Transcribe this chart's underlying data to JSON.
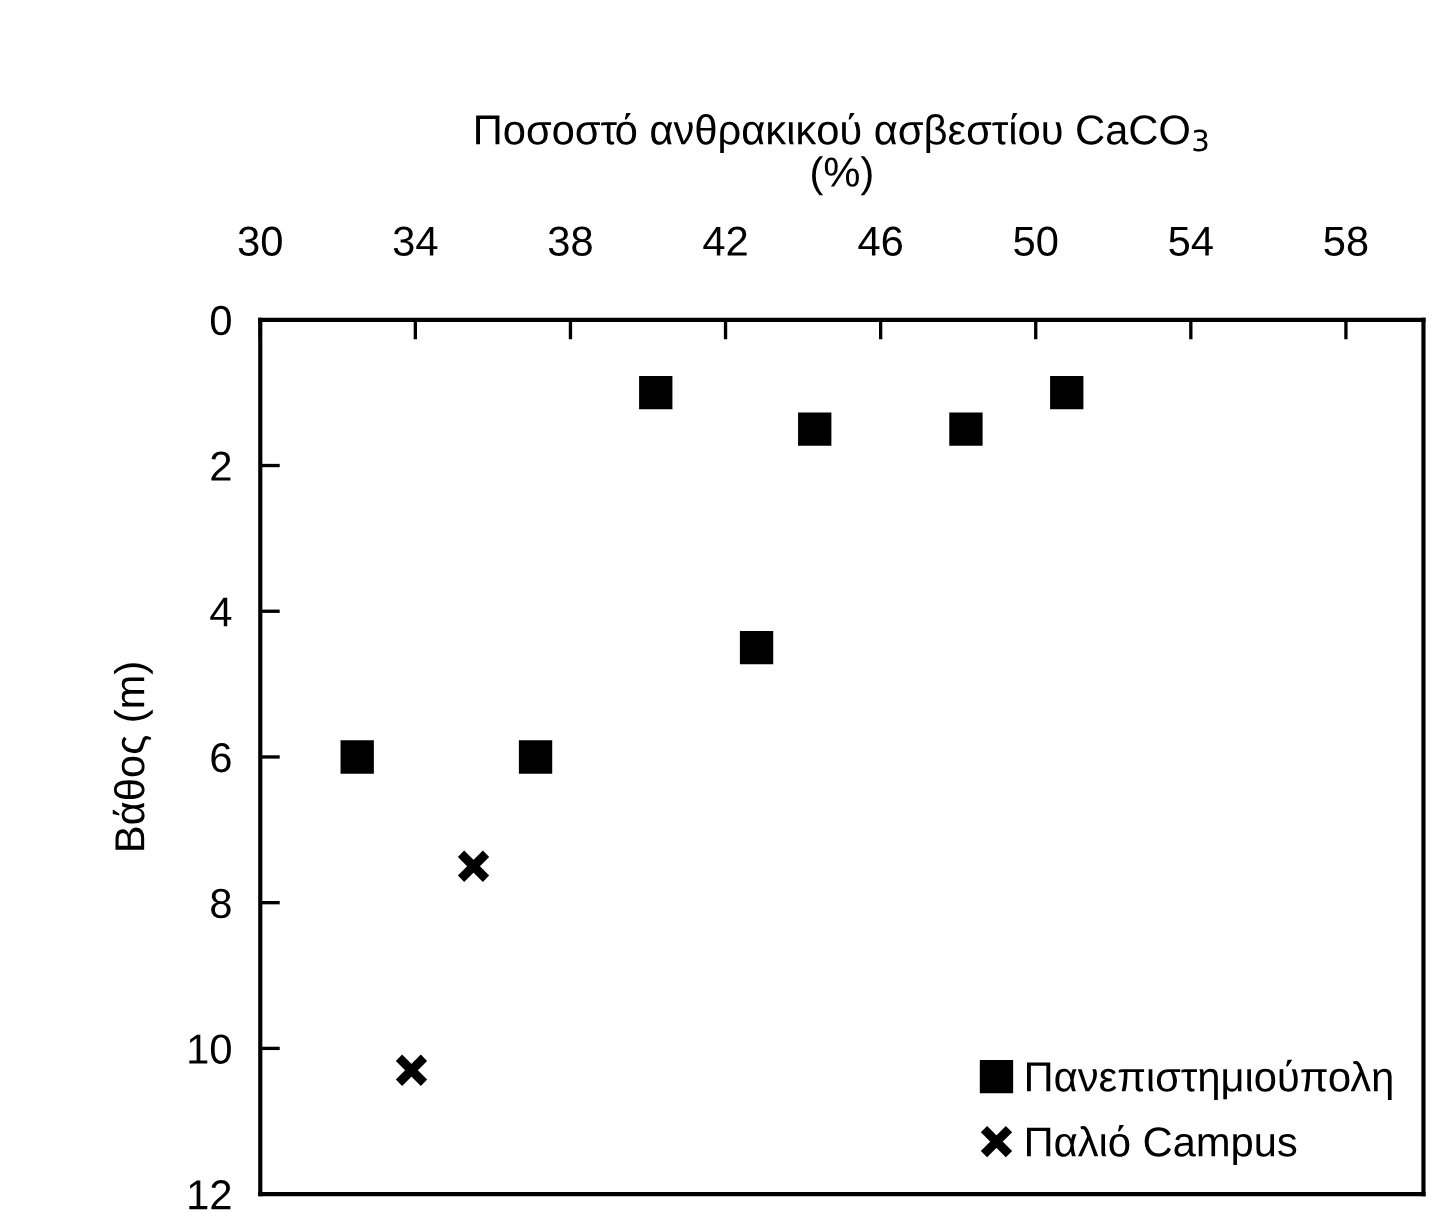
{
  "chart_data": {
    "type": "scatter",
    "xlabel": "Ποσοστό ανθρακικού ασβεστίου CaCO$_{3}$\n(%)",
    "ylabel": "Βάθος (m)",
    "xlim": [
      30,
      60
    ],
    "xticks": [
      30,
      34,
      38,
      42,
      46,
      50,
      54,
      58
    ],
    "ylim": [
      12,
      0
    ],
    "yticks": [
      0,
      2,
      4,
      6,
      8,
      10,
      12
    ],
    "grid": false,
    "legend": "bottom right",
    "series": [
      {
        "name": "Πανεπιστημιούπολη",
        "color": "#000000",
        "marker": "square",
        "x": [
          40.2,
          44.3,
          48.2,
          50.8,
          42.8,
          32.5,
          37.1
        ],
        "values": [
          1.0,
          1.5,
          1.5,
          1.0,
          4.5,
          6,
          6
        ]
      },
      {
        "name": "Παλιό Campus",
        "color": "#000000",
        "marker": "cross",
        "x": [
          35.5,
          33.9
        ],
        "values": [
          7.5,
          10.3
        ]
      }
    ]
  }
}
